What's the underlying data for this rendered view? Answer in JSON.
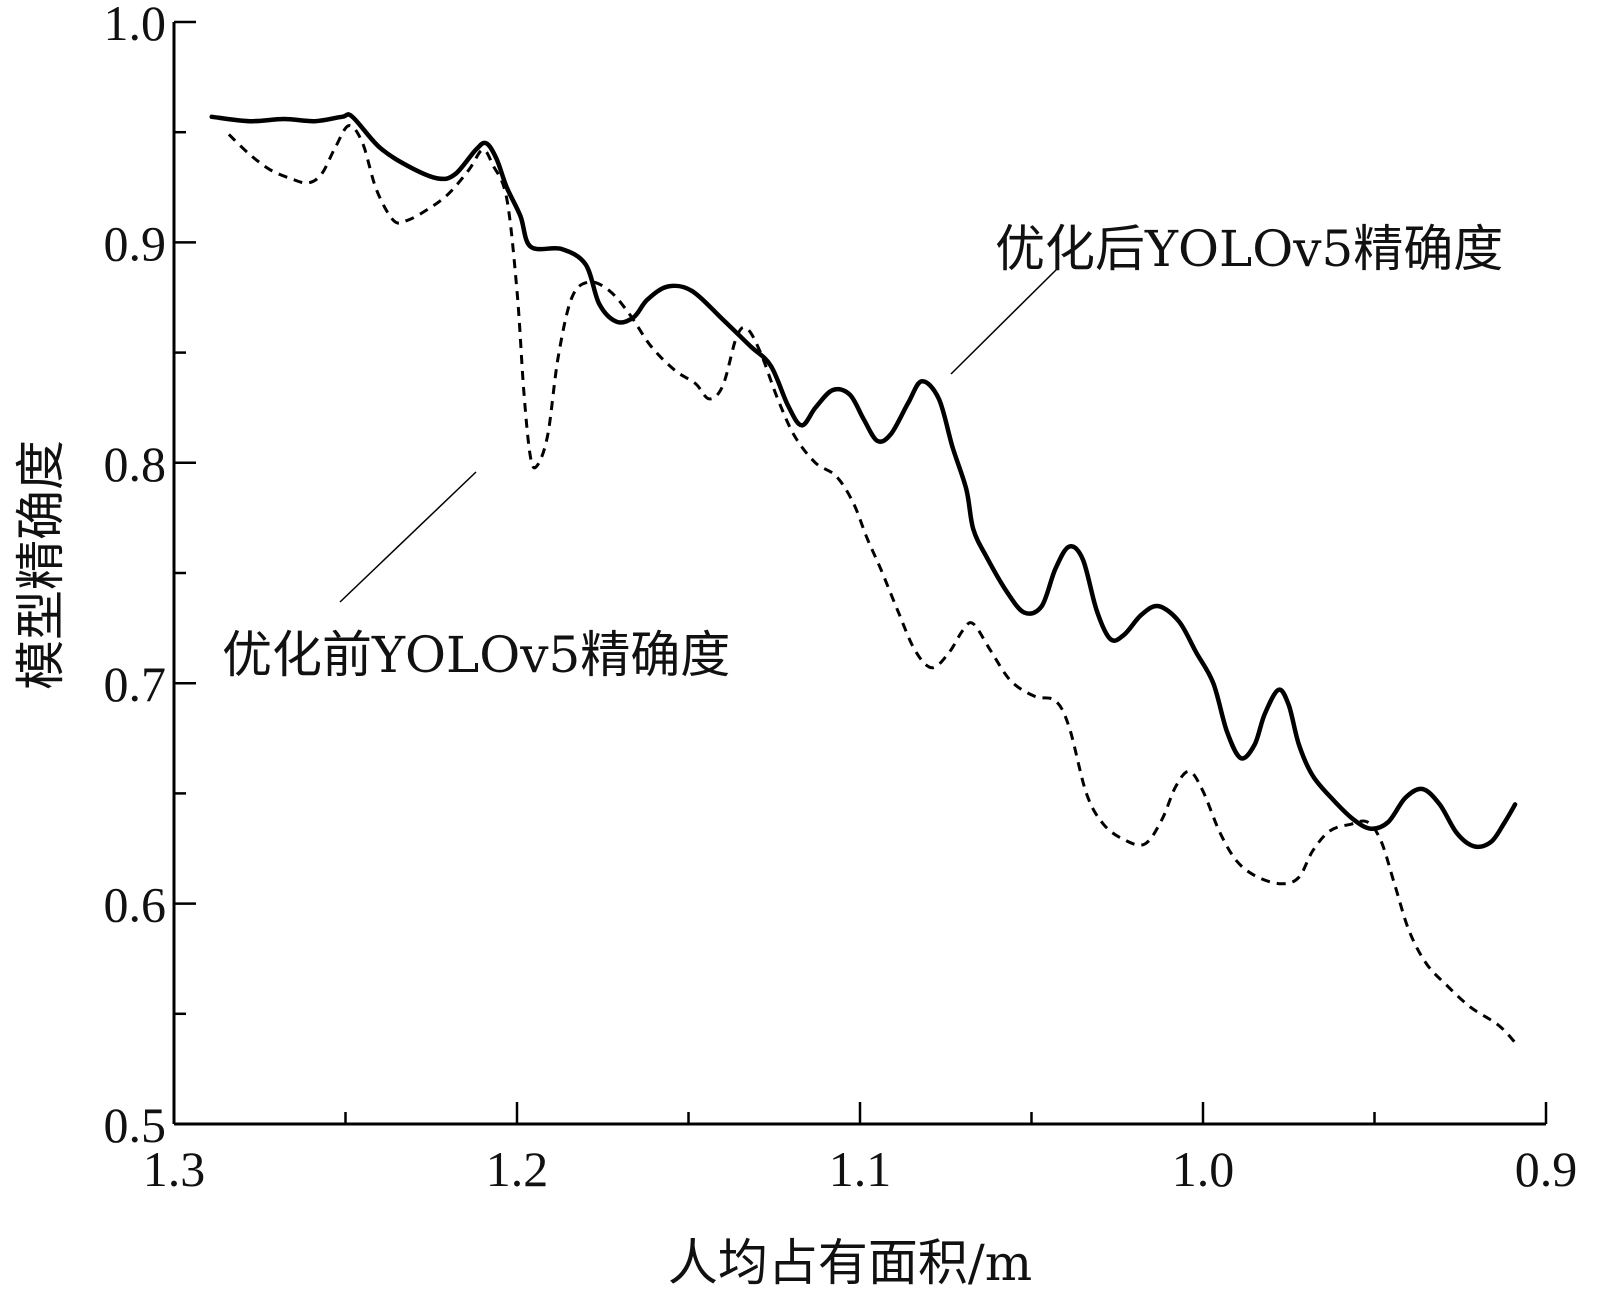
{
  "chart_data": {
    "type": "line",
    "xlabel": "人均占有面积/m",
    "ylabel": "模型精确度",
    "xlim": [
      1.3,
      0.9
    ],
    "ylim": [
      0.5,
      1.0
    ],
    "x_ticks": [
      "1.3",
      "1.2",
      "1.1",
      "1.0",
      "0.9"
    ],
    "y_ticks": [
      "0.5",
      "0.6",
      "0.7",
      "0.8",
      "0.9",
      "1.0"
    ],
    "grid": false,
    "series": [
      {
        "name": "优化后YOLOv5精确度",
        "style": "solid",
        "color": "#000000",
        "points": [
          [
            1.289,
            0.957
          ],
          [
            1.278,
            0.955
          ],
          [
            1.268,
            0.956
          ],
          [
            1.259,
            0.955
          ],
          [
            1.251,
            0.957
          ],
          [
            1.248,
            0.957
          ],
          [
            1.24,
            0.943
          ],
          [
            1.231,
            0.934
          ],
          [
            1.223,
            0.929
          ],
          [
            1.218,
            0.931
          ],
          [
            1.212,
            0.942
          ],
          [
            1.209,
            0.945
          ],
          [
            1.206,
            0.938
          ],
          [
            1.203,
            0.925
          ],
          [
            1.199,
            0.912
          ],
          [
            1.196,
            0.898
          ],
          [
            1.187,
            0.897
          ],
          [
            1.18,
            0.89
          ],
          [
            1.176,
            0.872
          ],
          [
            1.171,
            0.864
          ],
          [
            1.166,
            0.866
          ],
          [
            1.162,
            0.874
          ],
          [
            1.156,
            0.88
          ],
          [
            1.149,
            0.878
          ],
          [
            1.14,
            0.865
          ],
          [
            1.132,
            0.853
          ],
          [
            1.126,
            0.844
          ],
          [
            1.121,
            0.826
          ],
          [
            1.117,
            0.817
          ],
          [
            1.113,
            0.825
          ],
          [
            1.108,
            0.833
          ],
          [
            1.103,
            0.831
          ],
          [
            1.099,
            0.82
          ],
          [
            1.095,
            0.81
          ],
          [
            1.091,
            0.813
          ],
          [
            1.086,
            0.827
          ],
          [
            1.082,
            0.837
          ],
          [
            1.077,
            0.829
          ],
          [
            1.073,
            0.807
          ],
          [
            1.069,
            0.788
          ],
          [
            1.067,
            0.77
          ],
          [
            1.063,
            0.757
          ],
          [
            1.057,
            0.741
          ],
          [
            1.052,
            0.732
          ],
          [
            1.047,
            0.735
          ],
          [
            1.043,
            0.752
          ],
          [
            1.039,
            0.762
          ],
          [
            1.035,
            0.756
          ],
          [
            1.031,
            0.733
          ],
          [
            1.027,
            0.72
          ],
          [
            1.023,
            0.722
          ],
          [
            1.018,
            0.731
          ],
          [
            1.013,
            0.735
          ],
          [
            1.007,
            0.728
          ],
          [
            1.002,
            0.714
          ],
          [
            0.997,
            0.7
          ],
          [
            0.993,
            0.678
          ],
          [
            0.989,
            0.666
          ],
          [
            0.985,
            0.672
          ],
          [
            0.982,
            0.686
          ],
          [
            0.978,
            0.697
          ],
          [
            0.975,
            0.69
          ],
          [
            0.972,
            0.672
          ],
          [
            0.968,
            0.658
          ],
          [
            0.962,
            0.647
          ],
          [
            0.956,
            0.638
          ],
          [
            0.951,
            0.634
          ],
          [
            0.946,
            0.637
          ],
          [
            0.941,
            0.648
          ],
          [
            0.936,
            0.652
          ],
          [
            0.931,
            0.645
          ],
          [
            0.926,
            0.632
          ],
          [
            0.921,
            0.626
          ],
          [
            0.916,
            0.628
          ],
          [
            0.912,
            0.637
          ],
          [
            0.909,
            0.645
          ]
        ]
      },
      {
        "name": "优化前YOLOv5精确度",
        "style": "dashed",
        "color": "#000000",
        "points": [
          [
            1.284,
            0.949
          ],
          [
            1.278,
            0.94
          ],
          [
            1.272,
            0.933
          ],
          [
            1.266,
            0.929
          ],
          [
            1.261,
            0.927
          ],
          [
            1.257,
            0.931
          ],
          [
            1.253,
            0.943
          ],
          [
            1.249,
            0.953
          ],
          [
            1.245,
            0.945
          ],
          [
            1.241,
            0.924
          ],
          [
            1.236,
            0.91
          ],
          [
            1.232,
            0.91
          ],
          [
            1.226,
            0.915
          ],
          [
            1.22,
            0.922
          ],
          [
            1.214,
            0.933
          ],
          [
            1.21,
            0.942
          ],
          [
            1.207,
            0.935
          ],
          [
            1.203,
            0.92
          ],
          [
            1.2,
            0.878
          ],
          [
            1.198,
            0.832
          ],
          [
            1.196,
            0.802
          ],
          [
            1.194,
            0.799
          ],
          [
            1.191,
            0.813
          ],
          [
            1.188,
            0.848
          ],
          [
            1.184,
            0.875
          ],
          [
            1.179,
            0.882
          ],
          [
            1.173,
            0.878
          ],
          [
            1.167,
            0.867
          ],
          [
            1.161,
            0.853
          ],
          [
            1.154,
            0.842
          ],
          [
            1.148,
            0.836
          ],
          [
            1.144,
            0.829
          ],
          [
            1.14,
            0.835
          ],
          [
            1.136,
            0.857
          ],
          [
            1.133,
            0.861
          ],
          [
            1.129,
            0.85
          ],
          [
            1.124,
            0.829
          ],
          [
            1.119,
            0.812
          ],
          [
            1.113,
            0.8
          ],
          [
            1.107,
            0.794
          ],
          [
            1.102,
            0.782
          ],
          [
            1.098,
            0.766
          ],
          [
            1.094,
            0.752
          ],
          [
            1.089,
            0.733
          ],
          [
            1.084,
            0.715
          ],
          [
            1.079,
            0.707
          ],
          [
            1.074,
            0.714
          ],
          [
            1.07,
            0.724
          ],
          [
            1.067,
            0.727
          ],
          [
            1.062,
            0.715
          ],
          [
            1.056,
            0.701
          ],
          [
            1.049,
            0.694
          ],
          [
            1.043,
            0.692
          ],
          [
            1.039,
            0.68
          ],
          [
            1.034,
            0.65
          ],
          [
            1.029,
            0.636
          ],
          [
            1.023,
            0.629
          ],
          [
            1.017,
            0.627
          ],
          [
            1.012,
            0.638
          ],
          [
            1.008,
            0.653
          ],
          [
            1.004,
            0.66
          ],
          [
            1.0,
            0.651
          ],
          [
            0.995,
            0.632
          ],
          [
            0.99,
            0.619
          ],
          [
            0.984,
            0.612
          ],
          [
            0.977,
            0.609
          ],
          [
            0.972,
            0.612
          ],
          [
            0.968,
            0.624
          ],
          [
            0.963,
            0.633
          ],
          [
            0.957,
            0.636
          ],
          [
            0.952,
            0.637
          ],
          [
            0.948,
            0.628
          ],
          [
            0.944,
            0.608
          ],
          [
            0.94,
            0.588
          ],
          [
            0.935,
            0.573
          ],
          [
            0.929,
            0.563
          ],
          [
            0.922,
            0.553
          ],
          [
            0.914,
            0.545
          ],
          [
            0.909,
            0.537
          ]
        ]
      }
    ],
    "annotations": [
      {
        "text": "优化后YOLOv5精确度",
        "series": 0
      },
      {
        "text": "优化前YOLOv5精确度",
        "series": 1
      }
    ]
  }
}
